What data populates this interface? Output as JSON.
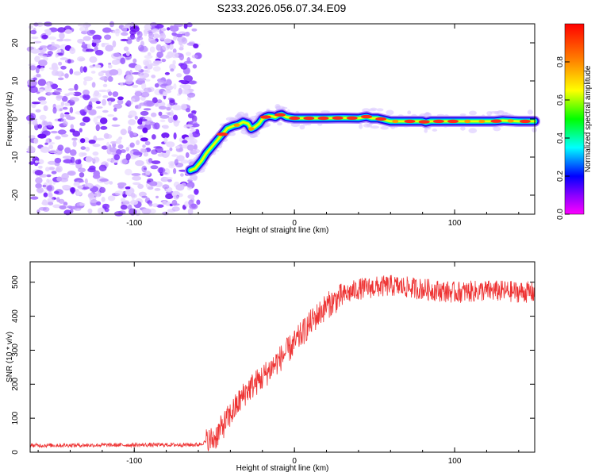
{
  "title": "S233.2026.056.07.34.E09",
  "chart_data": [
    {
      "type": "heatmap",
      "xlabel": "Height of straight line (km)",
      "ylabel": "Frequency (Hz)",
      "xlim": [
        -165,
        150
      ],
      "ylim": [
        -25,
        25
      ],
      "xticks": [
        -100,
        0,
        100
      ],
      "yticks": [
        -20,
        -10,
        0,
        10,
        20
      ],
      "xtick_labels": [
        "-100",
        "0",
        "100"
      ],
      "ytick_labels": [
        "-20",
        "-10",
        "0",
        "10",
        "20"
      ],
      "noise_region_x": [
        -165,
        -60
      ],
      "ridge": {
        "x": [
          -65,
          -62,
          -58,
          -55,
          -50,
          -45,
          -42,
          -38,
          -35,
          -32,
          -29,
          -27,
          -25,
          -22,
          -20,
          -18,
          -16,
          -14,
          -12,
          -10,
          -8,
          -5,
          0,
          10,
          20,
          30,
          40,
          45,
          48,
          52,
          60,
          70,
          80,
          82,
          85,
          95,
          105,
          115,
          125,
          130,
          140,
          150
        ],
        "y": [
          -13.5,
          -13,
          -11,
          -9,
          -6.5,
          -4,
          -2.5,
          -1.8,
          -1.5,
          -0.8,
          -1.2,
          -2.6,
          -2.2,
          -1.2,
          0,
          0.5,
          0.8,
          0.7,
          0.5,
          1.0,
          1.2,
          0.5,
          0.2,
          0.2,
          0.2,
          0.3,
          0.2,
          0.6,
          0.2,
          0.2,
          -0.6,
          -0.6,
          -0.6,
          -0.9,
          -0.6,
          -0.6,
          -0.6,
          -0.6,
          -0.6,
          -0.4,
          -0.6,
          -0.6
        ]
      },
      "colorbar": {
        "label": "Normalized spectral amplitude",
        "range": [
          0,
          1
        ],
        "ticks": [
          "0.0",
          "0.2",
          "0.4",
          "0.6",
          "0.8"
        ]
      }
    },
    {
      "type": "line",
      "xlabel": "Height of straight line (km)",
      "ylabel": "SNR (10 * v/v)",
      "xlim": [
        -165,
        150
      ],
      "ylim": [
        0,
        560
      ],
      "xticks": [
        -100,
        0,
        100
      ],
      "yticks": [
        0,
        100,
        200,
        300,
        400,
        500
      ],
      "xtick_labels": [
        "-100",
        "0",
        "100"
      ],
      "ytick_labels": [
        "0",
        "100",
        "200",
        "300",
        "400",
        "500"
      ],
      "line_color": "#ee3333",
      "trend": {
        "x": [
          -165,
          -60,
          -50,
          -40,
          -30,
          -20,
          -10,
          0,
          10,
          20,
          30,
          40,
          60,
          80,
          100,
          120,
          150
        ],
        "y": [
          20,
          22,
          40,
          110,
          180,
          220,
          270,
          320,
          380,
          430,
          460,
          480,
          490,
          480,
          470,
          475,
          470
        ]
      }
    }
  ]
}
